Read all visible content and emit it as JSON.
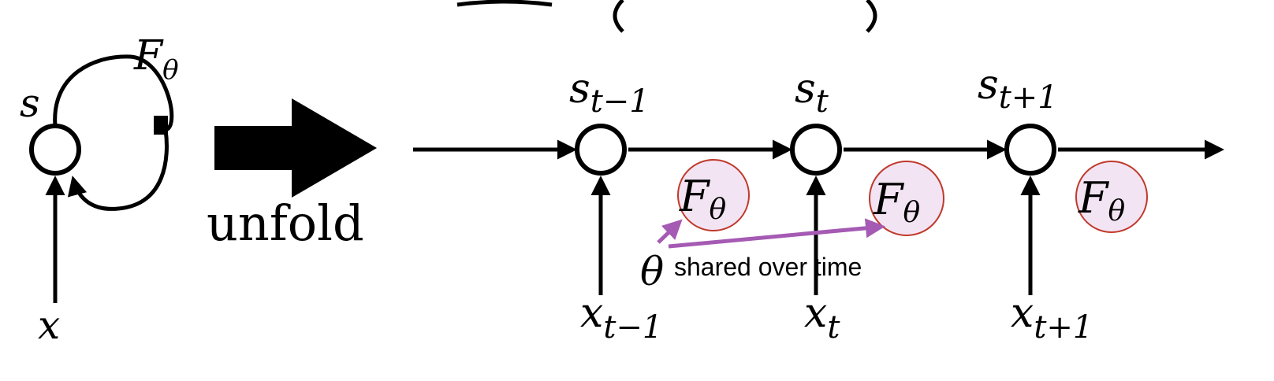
{
  "folded": {
    "state_label": "s",
    "input_label": "x",
    "function_label": "F",
    "function_subscript": "θ"
  },
  "unfold_label": "unfold",
  "unrolled": {
    "states": [
      {
        "base": "s",
        "sub": "t−1"
      },
      {
        "base": "s",
        "sub": "t"
      },
      {
        "base": "s",
        "sub": "t+1"
      }
    ],
    "inputs": [
      {
        "base": "x",
        "sub": "t−1"
      },
      {
        "base": "x",
        "sub": "t"
      },
      {
        "base": "x",
        "sub": "t+1"
      }
    ],
    "functions": [
      {
        "base": "F",
        "sub": "θ"
      },
      {
        "base": "F",
        "sub": "θ"
      },
      {
        "base": "F",
        "sub": "θ"
      }
    ]
  },
  "shared_note": {
    "symbol": "θ",
    "text": "shared over time"
  },
  "colors": {
    "shared_arrow": "#a55ab3",
    "function_fill": "#f3e4f3",
    "function_stroke": "#c0392b"
  }
}
